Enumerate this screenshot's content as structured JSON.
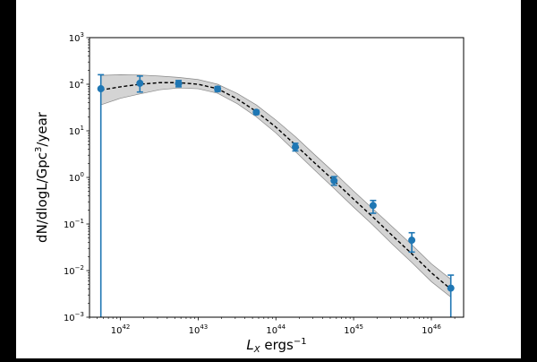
{
  "chart_data": {
    "type": "scatter",
    "x_scale": "log",
    "y_scale": "log",
    "xlim": [
      4e+41,
      2.6e+46
    ],
    "ylim": [
      0.001,
      1000
    ],
    "x_ticks": [
      {
        "value": 1e+42,
        "base": "10",
        "exp": "42"
      },
      {
        "value": 1e+43,
        "base": "10",
        "exp": "43"
      },
      {
        "value": 1e+44,
        "base": "10",
        "exp": "44"
      },
      {
        "value": 1e+45,
        "base": "10",
        "exp": "45"
      },
      {
        "value": 1e+46,
        "base": "10",
        "exp": "46"
      }
    ],
    "y_ticks": [
      {
        "value": 0.001,
        "base": "10",
        "exp": "−3"
      },
      {
        "value": 0.01,
        "base": "10",
        "exp": "−2"
      },
      {
        "value": 0.1,
        "base": "10",
        "exp": "−1"
      },
      {
        "value": 1,
        "base": "10",
        "exp": "0"
      },
      {
        "value": 10,
        "base": "10",
        "exp": "1"
      },
      {
        "value": 100,
        "base": "10",
        "exp": "2"
      },
      {
        "value": 1000,
        "base": "10",
        "exp": "3"
      }
    ],
    "xlabel": {
      "main": "L",
      "sub": "X",
      "unit": " ergs",
      "sup": "−1"
    },
    "ylabel": {
      "pre": "dN/dlogL/Gpc",
      "sup": "3",
      "post": "/year"
    },
    "points": [
      {
        "x": 5.6e+41,
        "y": 80,
        "ylo": 0.001,
        "yhi": 160
      },
      {
        "x": 1.78e+42,
        "y": 105,
        "ylo": 68,
        "yhi": 150
      },
      {
        "x": 5.6e+42,
        "y": 103,
        "ylo": 88,
        "yhi": 120
      },
      {
        "x": 1.78e+43,
        "y": 79,
        "ylo": 70,
        "yhi": 89
      },
      {
        "x": 5.6e+43,
        "y": 25,
        "ylo": 22.5,
        "yhi": 27.5
      },
      {
        "x": 1.78e+44,
        "y": 4.5,
        "ylo": 3.7,
        "yhi": 5.4
      },
      {
        "x": 5.6e+44,
        "y": 0.85,
        "ylo": 0.68,
        "yhi": 1.04
      },
      {
        "x": 1.78e+45,
        "y": 0.25,
        "ylo": 0.17,
        "yhi": 0.32
      },
      {
        "x": 5.6e+45,
        "y": 0.045,
        "ylo": 0.025,
        "yhi": 0.065
      },
      {
        "x": 1.78e+46,
        "y": 0.0042,
        "ylo": 0.001,
        "yhi": 0.008
      }
    ],
    "fit_line": {
      "x": [
        5.6e+41,
        1e+42,
        1.78e+42,
        3.2e+42,
        5.6e+42,
        1e+43,
        1.78e+43,
        3.2e+43,
        5.6e+43,
        1e+44,
        1.78e+44,
        3.2e+44,
        5.6e+44,
        1e+45,
        1.78e+45,
        3.2e+45,
        5.6e+45,
        1e+46,
        1.78e+46
      ],
      "y": [
        75,
        88,
        100,
        108,
        108,
        100,
        80,
        48,
        26,
        12,
        5.0,
        2.0,
        0.85,
        0.34,
        0.14,
        0.055,
        0.023,
        0.009,
        0.004
      ]
    },
    "band": {
      "x": [
        5.6e+41,
        1e+42,
        1.78e+42,
        3.2e+42,
        5.6e+42,
        1e+43,
        1.78e+43,
        3.2e+43,
        5.6e+43,
        1e+44,
        1.78e+44,
        3.2e+44,
        5.6e+44,
        1e+45,
        1.78e+45,
        3.2e+45,
        5.6e+45,
        1e+46,
        1.78e+46
      ],
      "upper": [
        155,
        160,
        158,
        150,
        140,
        126,
        100,
        63,
        36,
        17,
        7.5,
        3.0,
        1.28,
        0.51,
        0.21,
        0.085,
        0.036,
        0.014,
        0.0065
      ],
      "lower": [
        36,
        50,
        62,
        76,
        83,
        80,
        64,
        38,
        20,
        9.0,
        3.6,
        1.4,
        0.58,
        0.23,
        0.094,
        0.036,
        0.015,
        0.0058,
        0.0027
      ]
    },
    "colors": {
      "points": "#1f77b4",
      "fit_line": "#000000",
      "band": "#cccccc",
      "background": "#000000"
    },
    "grid": false,
    "legend": "none"
  }
}
